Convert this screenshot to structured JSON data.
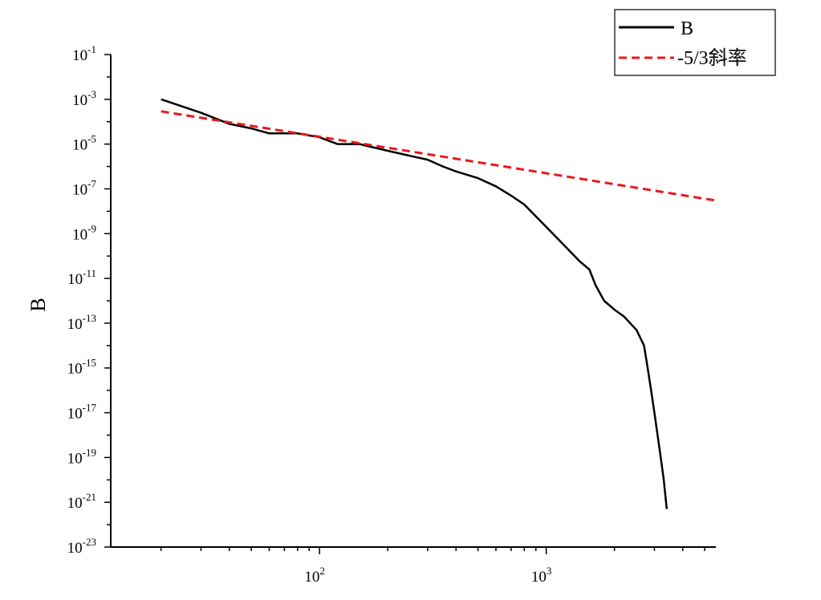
{
  "chart_data": {
    "type": "line",
    "title": "",
    "xlabel": "",
    "ylabel": "B",
    "x_scale": "log",
    "y_scale": "log",
    "xlim": [
      12,
      5600
    ],
    "ylim": [
      1e-23,
      0.1
    ],
    "grid": false,
    "legend_position": "top-right",
    "x_ticks": [
      {
        "base": "10",
        "exp": "2",
        "value": 100
      },
      {
        "base": "10",
        "exp": "3",
        "value": 1000
      }
    ],
    "y_ticks": [
      {
        "base": "10",
        "exp": "-1",
        "value": 0.1
      },
      {
        "base": "10",
        "exp": "-3",
        "value": 0.001
      },
      {
        "base": "10",
        "exp": "-5",
        "value": 1e-05
      },
      {
        "base": "10",
        "exp": "-7",
        "value": 1e-07
      },
      {
        "base": "10",
        "exp": "-9",
        "value": 1e-09
      },
      {
        "base": "10",
        "exp": "-11",
        "value": 1e-11
      },
      {
        "base": "10",
        "exp": "-13",
        "value": 1e-13
      },
      {
        "base": "10",
        "exp": "-15",
        "value": 1e-15
      },
      {
        "base": "10",
        "exp": "-17",
        "value": 1e-17
      },
      {
        "base": "10",
        "exp": "-19",
        "value": 1e-19
      },
      {
        "base": "10",
        "exp": "-21",
        "value": 1e-21
      },
      {
        "base": "10",
        "exp": "-23",
        "value": 1e-23
      }
    ],
    "series": [
      {
        "name": "B",
        "color": "#000000",
        "style": "solid",
        "points": [
          [
            20,
            0.001
          ],
          [
            30,
            0.00025
          ],
          [
            40,
            8e-05
          ],
          [
            50,
            5e-05
          ],
          [
            60,
            3e-05
          ],
          [
            80,
            3e-05
          ],
          [
            100,
            2e-05
          ],
          [
            120,
            1e-05
          ],
          [
            150,
            1e-05
          ],
          [
            200,
            5e-06
          ],
          [
            250,
            3e-06
          ],
          [
            300,
            2e-06
          ],
          [
            350,
            1e-06
          ],
          [
            400,
            6e-07
          ],
          [
            500,
            3e-07
          ],
          [
            600,
            1.3e-07
          ],
          [
            700,
            5e-08
          ],
          [
            800,
            2e-08
          ],
          [
            1000,
            2e-09
          ],
          [
            1200,
            3e-10
          ],
          [
            1400,
            6e-11
          ],
          [
            1550,
            2.5e-11
          ],
          [
            1650,
            5e-12
          ],
          [
            1800,
            1e-12
          ],
          [
            2000,
            4e-13
          ],
          [
            2200,
            2e-13
          ],
          [
            2500,
            5e-14
          ],
          [
            2700,
            1e-14
          ],
          [
            2800,
            1e-15
          ],
          [
            2900,
            1e-16
          ],
          [
            3000,
            1e-17
          ],
          [
            3100,
            1e-18
          ],
          [
            3200,
            1e-19
          ],
          [
            3300,
            1e-20
          ],
          [
            3400,
            5e-22
          ]
        ]
      },
      {
        "name": "-5/3斜率",
        "color": "#e8191b",
        "style": "dashed",
        "points": [
          [
            20,
            0.00029
          ],
          [
            5600,
            3e-08
          ]
        ]
      }
    ]
  }
}
